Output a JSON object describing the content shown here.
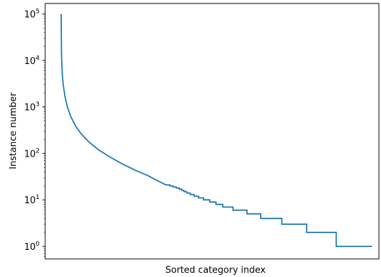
{
  "chart_data": {
    "type": "line",
    "title": "",
    "xlabel": "Sorted category index",
    "ylabel": "Instance number",
    "yscale": "log",
    "ylim": [
      0.55,
      150000
    ],
    "xticks_shown": false,
    "grid": false,
    "legend": "none",
    "yticks": [
      {
        "value": 1,
        "base": "10",
        "exp": "0"
      },
      {
        "value": 10,
        "base": "10",
        "exp": "1"
      },
      {
        "value": 100,
        "base": "10",
        "exp": "2"
      },
      {
        "value": 1000,
        "base": "10",
        "exp": "3"
      },
      {
        "value": 10000,
        "base": "10",
        "exp": "4"
      },
      {
        "value": 100000,
        "base": "10",
        "exp": "5"
      }
    ],
    "series": [
      {
        "color": "#1f77b4",
        "x_range": [
          0,
          1
        ],
        "points": [
          [
            0.0,
            100000
          ],
          [
            0.001,
            15000
          ],
          [
            0.003,
            6000
          ],
          [
            0.006,
            3200
          ],
          [
            0.012,
            1700
          ],
          [
            0.02,
            1000
          ],
          [
            0.03,
            640
          ],
          [
            0.045,
            400
          ],
          [
            0.065,
            260
          ],
          [
            0.09,
            175
          ],
          [
            0.12,
            120
          ],
          [
            0.155,
            85
          ],
          [
            0.195,
            60
          ],
          [
            0.24,
            43
          ],
          [
            0.28,
            33
          ],
          [
            0.3,
            28
          ],
          [
            0.32,
            24
          ],
          [
            0.337,
            21
          ],
          [
            0.35,
            20
          ],
          [
            0.36,
            19
          ],
          [
            0.37,
            18
          ],
          [
            0.38,
            17
          ],
          [
            0.388,
            16
          ],
          [
            0.395,
            15
          ],
          [
            0.404,
            14
          ],
          [
            0.415,
            13
          ],
          [
            0.428,
            12
          ],
          [
            0.442,
            11
          ],
          [
            0.458,
            10
          ],
          [
            0.478,
            9
          ],
          [
            0.498,
            8
          ],
          [
            0.52,
            7
          ],
          [
            0.553,
            6
          ],
          [
            0.598,
            5
          ],
          [
            0.642,
            4
          ],
          [
            0.71,
            3
          ],
          [
            0.79,
            2
          ],
          [
            0.885,
            1
          ],
          [
            1.0,
            1
          ]
        ]
      }
    ]
  }
}
